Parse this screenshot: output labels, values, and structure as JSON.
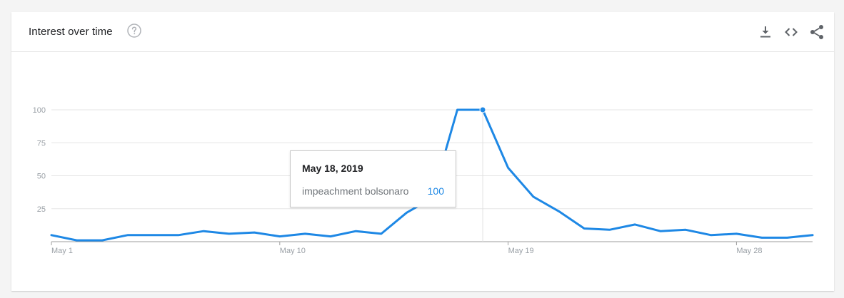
{
  "header": {
    "title": "Interest over time",
    "help_icon": "help-circle-icon",
    "actions": [
      {
        "name": "download-icon"
      },
      {
        "name": "embed-code-icon"
      },
      {
        "name": "share-icon"
      }
    ]
  },
  "colors": {
    "series": "#1e88e5",
    "grid": "#e6e6e6",
    "axis_text": "#9aa0a6",
    "icon": "#5f6368"
  },
  "chart_data": {
    "type": "line",
    "x_tick_labels": [
      "May 1",
      "May 10",
      "May 19",
      "May 28"
    ],
    "x_tick_positions": [
      1,
      10,
      19,
      28
    ],
    "y_ticks": [
      25,
      50,
      75,
      100
    ],
    "ylim": [
      0,
      100
    ],
    "xlim": [
      1,
      31
    ],
    "grid": true,
    "series": [
      {
        "name": "impeachment bolsonaro",
        "x": [
          1,
          2,
          3,
          4,
          5,
          6,
          7,
          8,
          9,
          10,
          11,
          12,
          13,
          14,
          15,
          16,
          17,
          18,
          19,
          20,
          21,
          22,
          23,
          24,
          25,
          26,
          27,
          28,
          29,
          30,
          31
        ],
        "values": [
          5,
          1,
          1,
          5,
          5,
          5,
          8,
          6,
          7,
          4,
          6,
          4,
          8,
          6,
          22,
          33,
          100,
          100,
          56,
          34,
          23,
          10,
          9,
          13,
          8,
          9,
          5,
          6,
          3,
          3,
          5
        ]
      }
    ],
    "highlight_index": 17
  },
  "tooltip": {
    "date": "May 18, 2019",
    "term": "impeachment bolsonaro",
    "value": "100"
  }
}
